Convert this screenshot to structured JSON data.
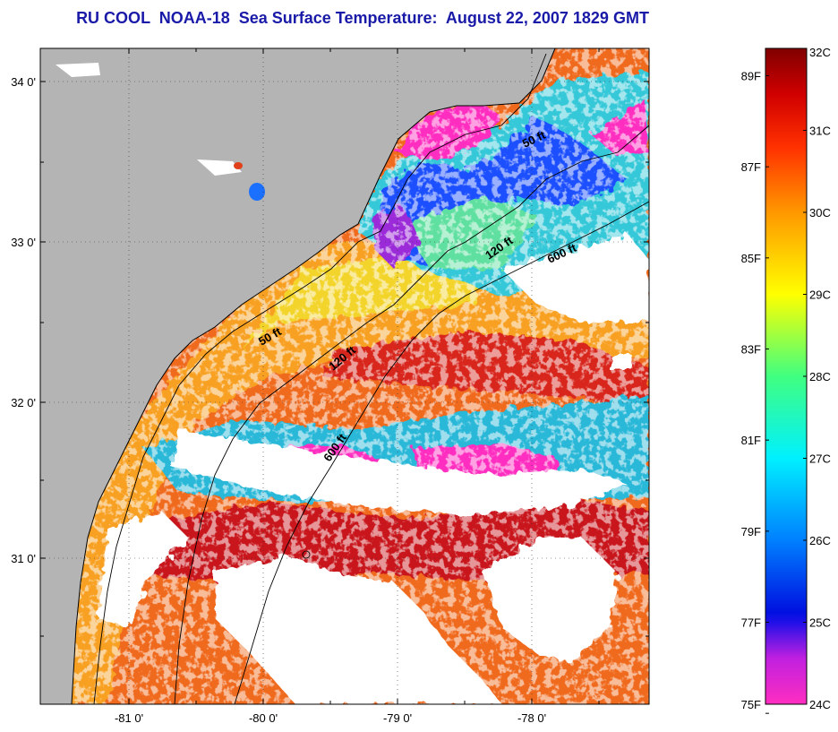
{
  "title": "RU COOL  NOAA-18  Sea Surface Temperature:  August 22, 2007 1829 GMT",
  "map": {
    "latitude_labels": [
      "34 0'",
      "33 0'",
      "32 0'",
      "31 0'"
    ],
    "longitude_labels": [
      "-81 0'",
      "-80 0'",
      "-79 0'",
      "-78 0'"
    ],
    "contour_labels": [
      "50 ft",
      "120 ft",
      "600 ft",
      "50 ft",
      "120 ft",
      "600 ft"
    ],
    "colors": {
      "land": "#b4b4b4",
      "cloud": "#ffffff",
      "warm_sea": "#e8401a",
      "hot_sea": "#b80f14",
      "cool_sea": "#22c4e8",
      "cold_sea": "#ff2ec0"
    }
  },
  "colorbar": {
    "celsius_labels": [
      "32C",
      "31C",
      "30C",
      "29C",
      "28C",
      "27C",
      "26C",
      "25C",
      "24C"
    ],
    "fahrenheit_labels": [
      "89F",
      "87F",
      "85F",
      "83F",
      "81F",
      "79F",
      "77F",
      "75F"
    ],
    "celsius_values": [
      32,
      31,
      30,
      29,
      28,
      27,
      26,
      25,
      24
    ],
    "fahrenheit_values": [
      89,
      87,
      85,
      83,
      81,
      79,
      77,
      75
    ],
    "colors": [
      "#ff2ec0",
      "#a020d8",
      "#0010e0",
      "#0080ff",
      "#00f0ff",
      "#40ff80",
      "#ffff00",
      "#ff9800",
      "#ff4000",
      "#e00000",
      "#800000"
    ]
  }
}
